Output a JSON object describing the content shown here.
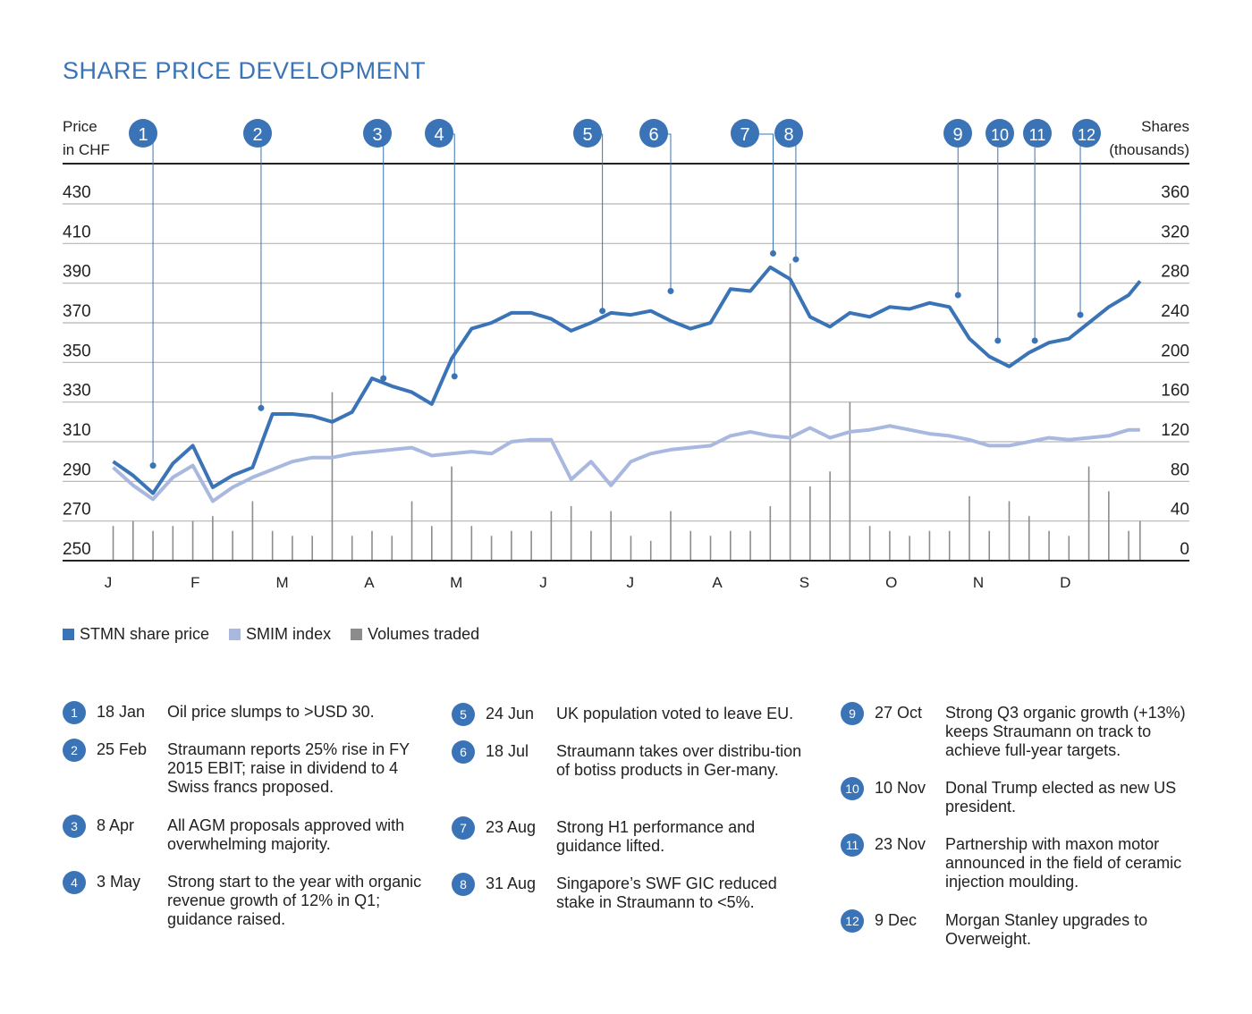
{
  "title": "SHARE PRICE DEVELOPMENT",
  "colors": {
    "stmn": "#3a74b6",
    "smim": "#a9b8de",
    "volume": "#8c8c8c",
    "grid": "#b5b5b5",
    "accent": "#3a74b6"
  },
  "chart_data": {
    "type": "line",
    "year_span": [
      "01-01",
      "12-31"
    ],
    "left_axis": {
      "label_line1": "Price",
      "label_line2": "in CHF",
      "ticks": [
        250,
        270,
        290,
        310,
        330,
        350,
        370,
        390,
        410,
        430
      ],
      "range": [
        250,
        430
      ]
    },
    "right_axis": {
      "label_line1": "Shares",
      "label_line2": "(thousands)",
      "ticks": [
        0,
        40,
        80,
        120,
        160,
        200,
        240,
        280,
        320,
        360
      ],
      "range": [
        0,
        360
      ]
    },
    "x_ticks": [
      "J",
      "F",
      "M",
      "A",
      "M",
      "J",
      "J",
      "A",
      "S",
      "O",
      "N",
      "D"
    ],
    "grid": true,
    "legend": {
      "placement": "bottom-left",
      "items": [
        {
          "name": "STMN share price",
          "color": "#3a74b6"
        },
        {
          "name": "SMIM index",
          "color": "#a9b8de"
        },
        {
          "name": "Volumes traded",
          "color": "#8c8c8c"
        }
      ]
    },
    "dates": [
      "01-04",
      "01-11",
      "01-18",
      "01-25",
      "02-01",
      "02-08",
      "02-15",
      "02-22",
      "02-29",
      "03-07",
      "03-14",
      "03-21",
      "03-28",
      "04-04",
      "04-11",
      "04-18",
      "04-25",
      "05-02",
      "05-09",
      "05-16",
      "05-23",
      "05-30",
      "06-06",
      "06-13",
      "06-20",
      "06-27",
      "07-04",
      "07-11",
      "07-18",
      "07-25",
      "08-01",
      "08-08",
      "08-15",
      "08-22",
      "08-29",
      "09-05",
      "09-12",
      "09-19",
      "09-26",
      "10-03",
      "10-10",
      "10-17",
      "10-24",
      "10-31",
      "11-07",
      "11-14",
      "11-21",
      "11-28",
      "12-05",
      "12-12",
      "12-19",
      "12-26",
      "12-30"
    ],
    "series": [
      {
        "name": "STMN share price",
        "axis": "left",
        "values": [
          300,
          293,
          284,
          299,
          308,
          287,
          293,
          297,
          324,
          324,
          323,
          320,
          325,
          342,
          338,
          335,
          329,
          352,
          367,
          370,
          375,
          375,
          372,
          366,
          370,
          375,
          374,
          376,
          371,
          367,
          370,
          387,
          386,
          398,
          392,
          373,
          368,
          375,
          373,
          378,
          377,
          380,
          378,
          362,
          353,
          348,
          355,
          360,
          362,
          370,
          378,
          384,
          391
        ]
      },
      {
        "name": "SMIM index",
        "axis": "left",
        "values": [
          297,
          288,
          281,
          292,
          298,
          280,
          287,
          292,
          296,
          300,
          302,
          302,
          304,
          305,
          306,
          307,
          303,
          304,
          305,
          304,
          310,
          311,
          311,
          291,
          300,
          288,
          300,
          304,
          306,
          307,
          308,
          313,
          315,
          313,
          312,
          317,
          312,
          315,
          316,
          318,
          316,
          314,
          313,
          311,
          308,
          308,
          310,
          312,
          311,
          312,
          313,
          316,
          316
        ]
      },
      {
        "name": "Volumes traded",
        "axis": "right",
        "type": "bar",
        "values": [
          35,
          40,
          30,
          35,
          40,
          45,
          30,
          60,
          30,
          25,
          25,
          170,
          25,
          30,
          25,
          60,
          35,
          95,
          35,
          25,
          30,
          30,
          50,
          55,
          30,
          50,
          25,
          20,
          50,
          30,
          25,
          30,
          30,
          55,
          300,
          75,
          90,
          160,
          35,
          30,
          25,
          30,
          30,
          65,
          30,
          60,
          45,
          30,
          25,
          95,
          70,
          30,
          40
        ]
      }
    ],
    "markers": [
      {
        "n": "1",
        "date": "01-18",
        "value": 298
      },
      {
        "n": "2",
        "date": "02-25",
        "value": 327
      },
      {
        "n": "3",
        "date": "04-08",
        "value": 342
      },
      {
        "n": "4",
        "date": "05-03",
        "value": 343
      },
      {
        "n": "5",
        "date": "06-24",
        "value": 376
      },
      {
        "n": "6",
        "date": "07-18",
        "value": 386
      },
      {
        "n": "7",
        "date": "08-23",
        "value": 405
      },
      {
        "n": "8",
        "date": "08-31",
        "value": 402
      },
      {
        "n": "9",
        "date": "10-27",
        "value": 384
      },
      {
        "n": "10",
        "date": "11-10",
        "value": 361
      },
      {
        "n": "11",
        "date": "11-23",
        "value": 361
      },
      {
        "n": "12",
        "date": "12-09",
        "value": 374
      }
    ]
  },
  "events": [
    {
      "n": "1",
      "date": "18 Jan",
      "text": "Oil price slumps to >USD 30."
    },
    {
      "n": "2",
      "date": "25 Feb",
      "text": "Straumann reports 25% rise in FY 2015 EBIT; raise in dividend to 4 Swiss francs proposed."
    },
    {
      "n": "3",
      "date": "8 Apr",
      "text": "All AGM proposals approved with overwhelming majority."
    },
    {
      "n": "4",
      "date": "3 May",
      "text": "Strong start to the year with organic revenue growth of 12% in Q1; guidance raised."
    },
    {
      "n": "5",
      "date": "24 Jun",
      "text": "UK population voted to leave EU."
    },
    {
      "n": "6",
      "date": "18 Jul",
      "text": "Straumann takes over distribu-tion of botiss products in Ger-many."
    },
    {
      "n": "7",
      "date": "23 Aug",
      "text": "Strong H1 performance and guidance lifted."
    },
    {
      "n": "8",
      "date": "31 Aug",
      "text": "Singapore’s SWF GIC reduced stake in Straumann to <5%."
    },
    {
      "n": "9",
      "date": "27 Oct",
      "text": "Strong Q3 organic growth (+13%) keeps Straumann on track to achieve full-year targets."
    },
    {
      "n": "10",
      "date": "10 Nov",
      "text": "Donal Trump elected as new US president."
    },
    {
      "n": "11",
      "date": "23 Nov",
      "text": "Partnership with maxon motor announced in the field of ceramic injection moulding."
    },
    {
      "n": "12",
      "date": "9 Dec",
      "text": "Morgan Stanley upgrades to Overweight."
    }
  ]
}
